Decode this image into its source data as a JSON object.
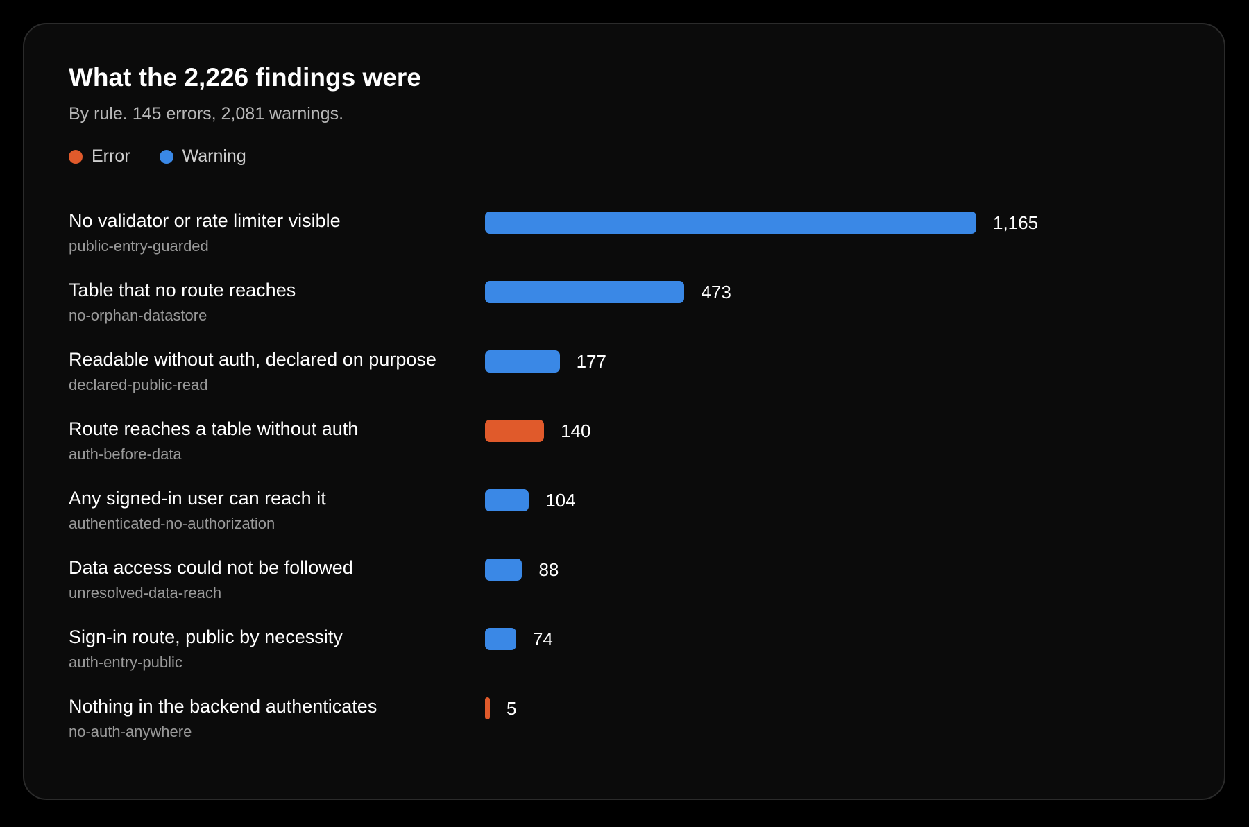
{
  "title": "What the 2,226 findings were",
  "subtitle": "By rule. 145 errors, 2,081 warnings.",
  "colors": {
    "error": "#e05a2b",
    "warning": "#3a88e6",
    "background": "#000000",
    "card": "#0b0b0b"
  },
  "legend": [
    {
      "label": "Error",
      "severity": "error"
    },
    {
      "label": "Warning",
      "severity": "warning"
    }
  ],
  "chart_data": {
    "type": "bar",
    "orientation": "horizontal",
    "title": "What the 2,226 findings were",
    "subtitle": "By rule. 145 errors, 2,081 warnings.",
    "legend_position": "top-left",
    "grid": false,
    "xlim": [
      0,
      1165
    ],
    "rows": [
      {
        "label": "No validator or rate limiter visible",
        "rule": "public-entry-guarded",
        "value": 1165,
        "value_label": "1,165",
        "severity": "warning"
      },
      {
        "label": "Table that no route reaches",
        "rule": "no-orphan-datastore",
        "value": 473,
        "value_label": "473",
        "severity": "warning"
      },
      {
        "label": "Readable without auth, declared on purpose",
        "rule": "declared-public-read",
        "value": 177,
        "value_label": "177",
        "severity": "warning"
      },
      {
        "label": "Route reaches a table without auth",
        "rule": "auth-before-data",
        "value": 140,
        "value_label": "140",
        "severity": "error"
      },
      {
        "label": "Any signed-in user can reach it",
        "rule": "authenticated-no-authorization",
        "value": 104,
        "value_label": "104",
        "severity": "warning"
      },
      {
        "label": "Data access could not be followed",
        "rule": "unresolved-data-reach",
        "value": 88,
        "value_label": "88",
        "severity": "warning"
      },
      {
        "label": "Sign-in route, public by necessity",
        "rule": "auth-entry-public",
        "value": 74,
        "value_label": "74",
        "severity": "warning"
      },
      {
        "label": "Nothing in the backend authenticates",
        "rule": "no-auth-anywhere",
        "value": 5,
        "value_label": "5",
        "severity": "error"
      }
    ]
  }
}
